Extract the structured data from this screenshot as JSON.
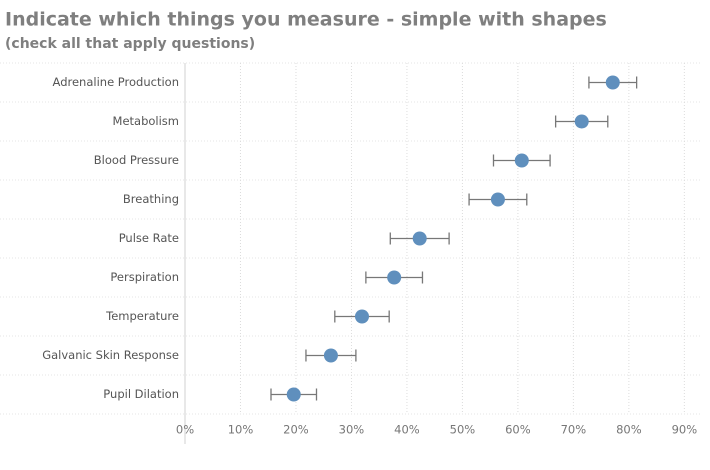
{
  "chart_data": {
    "type": "dot-error",
    "title": "Indicate which things you measure - simple with shapes",
    "subtitle": "(check all that apply questions)",
    "categories": [
      "Adrenaline Production",
      "Metabolism",
      "Blood Pressure",
      "Breathing",
      "Pulse Rate",
      "Perspiration",
      "Temperature",
      "Galvanic Skin Response",
      "Pupil Dilation"
    ],
    "values": [
      77.1,
      71.5,
      60.7,
      56.4,
      42.3,
      37.7,
      31.9,
      26.3,
      19.6
    ],
    "errors": [
      4.3,
      4.7,
      5.1,
      5.2,
      5.3,
      5.1,
      4.9,
      4.5,
      4.1
    ],
    "color": "#5f8fbd",
    "error_color": "#777777",
    "xlim": [
      0,
      93
    ],
    "xticks": [
      {
        "value": 0,
        "label": "0%"
      },
      {
        "value": 10,
        "label": "10%"
      },
      {
        "value": 20,
        "label": "20%"
      },
      {
        "value": 30,
        "label": "30%"
      },
      {
        "value": 40,
        "label": "40%"
      },
      {
        "value": 50,
        "label": "50%"
      },
      {
        "value": 60,
        "label": "60%"
      },
      {
        "value": 70,
        "label": "70%"
      },
      {
        "value": 80,
        "label": "80%"
      },
      {
        "value": 90,
        "label": "90%"
      }
    ],
    "grid": true
  }
}
